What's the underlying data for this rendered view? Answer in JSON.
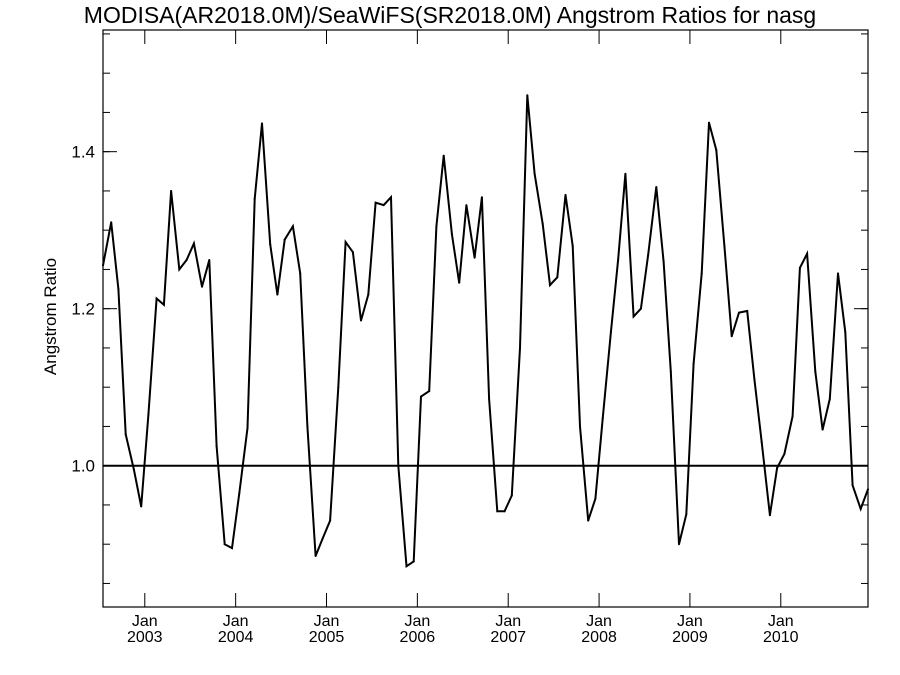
{
  "chart_data": {
    "type": "line",
    "title": "MODISA(AR2018.0M)/SeaWiFS(SR2018.0M)  Angstrom Ratios for nasg",
    "xlabel": "",
    "ylabel": "Angstrom Ratio",
    "xlim": [
      2002.54,
      2010.96
    ],
    "ylim": [
      0.82,
      1.555
    ],
    "y_ticks": [
      1.0,
      1.2,
      1.4
    ],
    "y_tick_labels": [
      "1.0",
      "1.2",
      "1.4"
    ],
    "y_minor_step": 0.05,
    "x_ticks": [
      {
        "x": 2003,
        "month": "Jan",
        "year": "2003"
      },
      {
        "x": 2004,
        "month": "Jan",
        "year": "2004"
      },
      {
        "x": 2005,
        "month": "Jan",
        "year": "2005"
      },
      {
        "x": 2006,
        "month": "Jan",
        "year": "2006"
      },
      {
        "x": 2007,
        "month": "Jan",
        "year": "2007"
      },
      {
        "x": 2008,
        "month": "Jan",
        "year": "2008"
      },
      {
        "x": 2009,
        "month": "Jan",
        "year": "2009"
      },
      {
        "x": 2010,
        "month": "Jan",
        "year": "2010"
      }
    ],
    "reference_line": 1.0,
    "grid": false,
    "series": [
      {
        "color": "#000000",
        "x": [
          2002.54,
          2002.63,
          2002.71,
          2002.79,
          2002.88,
          2002.96,
          2003.04,
          2003.13,
          2003.21,
          2003.29,
          2003.38,
          2003.46,
          2003.54,
          2003.63,
          2003.71,
          2003.79,
          2003.88,
          2003.96,
          2004.04,
          2004.13,
          2004.21,
          2004.29,
          2004.38,
          2004.46,
          2004.54,
          2004.63,
          2004.71,
          2004.79,
          2004.88,
          2004.96,
          2005.04,
          2005.13,
          2005.21,
          2005.29,
          2005.38,
          2005.46,
          2005.54,
          2005.63,
          2005.71,
          2005.79,
          2005.88,
          2005.96,
          2006.04,
          2006.13,
          2006.21,
          2006.29,
          2006.38,
          2006.46,
          2006.54,
          2006.63,
          2006.71,
          2006.79,
          2006.88,
          2006.96,
          2007.04,
          2007.13,
          2007.21,
          2007.29,
          2007.38,
          2007.46,
          2007.54,
          2007.63,
          2007.71,
          2007.79,
          2007.88,
          2007.96,
          2008.04,
          2008.13,
          2008.21,
          2008.29,
          2008.38,
          2008.46,
          2008.54,
          2008.63,
          2008.71,
          2008.79,
          2008.88,
          2008.96,
          2009.04,
          2009.13,
          2009.21,
          2009.29,
          2009.38,
          2009.46,
          2009.54,
          2009.63,
          2009.71,
          2009.79,
          2009.88,
          2009.96,
          2010.04,
          2010.13,
          2010.21,
          2010.29,
          2010.38,
          2010.46,
          2010.54,
          2010.63,
          2010.71,
          2010.79,
          2010.88,
          2010.96
        ],
        "values": [
          1.255,
          1.31,
          1.225,
          1.04,
          0.995,
          0.948,
          1.065,
          1.213,
          1.205,
          1.35,
          1.25,
          1.262,
          1.283,
          1.228,
          1.262,
          1.025,
          0.9,
          0.895,
          0.965,
          1.048,
          1.34,
          1.436,
          1.282,
          1.218,
          1.288,
          1.305,
          1.245,
          1.05,
          0.885,
          0.908,
          0.93,
          1.1,
          1.285,
          1.272,
          1.185,
          1.218,
          1.335,
          1.332,
          1.342,
          1.0,
          0.872,
          0.878,
          1.088,
          1.095,
          1.305,
          1.395,
          1.295,
          1.233,
          1.332,
          1.265,
          1.342,
          1.085,
          0.942,
          0.942,
          0.962,
          1.15,
          1.472,
          1.372,
          1.308,
          1.23,
          1.24,
          1.345,
          1.28,
          1.05,
          0.93,
          0.958,
          1.06,
          1.17,
          1.262,
          1.372,
          1.19,
          1.2,
          1.268,
          1.355,
          1.26,
          1.12,
          0.9,
          0.938,
          1.13,
          1.245,
          1.437,
          1.402,
          1.28,
          1.165,
          1.195,
          1.197,
          1.11,
          1.03,
          0.937,
          0.997,
          1.015,
          1.063,
          1.252,
          1.27,
          1.12,
          1.046,
          1.085,
          1.245,
          1.17,
          0.975,
          0.945,
          0.97
        ]
      }
    ]
  }
}
